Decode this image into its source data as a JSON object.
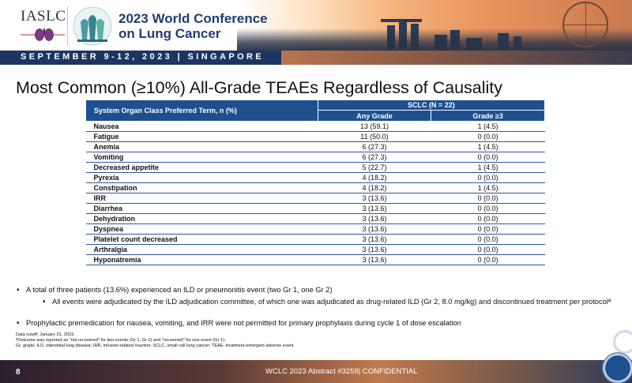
{
  "header": {
    "logo_text": "IASLC",
    "conference_title_line1": "2023 World Conference",
    "conference_title_line2": "on Lung Cancer",
    "date_bar": "SEPTEMBER 9-12, 2023 | SINGAPORE"
  },
  "slide": {
    "title": "Most Common (≥10%) All-Grade TEAEs Regardless of Causality"
  },
  "table": {
    "header_term": "System Organ Class Preferred Term, n (%)",
    "header_group": "SCLC (N = 22)",
    "header_any": "Any Grade",
    "header_grade3": "Grade ≥3",
    "rows": [
      {
        "term": "Nausea",
        "any": "13 (59.1)",
        "g3": "1 (4.5)"
      },
      {
        "term": "Fatigue",
        "any": "11 (50.0)",
        "g3": "0 (0.0)"
      },
      {
        "term": "Anemia",
        "any": "6 (27.3)",
        "g3": "1 (4.5)"
      },
      {
        "term": "Vomiting",
        "any": "6 (27.3)",
        "g3": "0 (0.0)"
      },
      {
        "term": "Decreased appetite",
        "any": "5 (22.7)",
        "g3": "1 (4.5)"
      },
      {
        "term": "Pyrexia",
        "any": "4 (18.2)",
        "g3": "0 (0.0)"
      },
      {
        "term": "Constipation",
        "any": "4 (18.2)",
        "g3": "1 (4.5)"
      },
      {
        "term": "IRR",
        "any": "3 (13.6)",
        "g3": "0 (0.0)"
      },
      {
        "term": "Diarrhea",
        "any": "3 (13.6)",
        "g3": "0 (0.0)"
      },
      {
        "term": "Dehydration",
        "any": "3 (13.6)",
        "g3": "0 (0.0)"
      },
      {
        "term": "Dyspnea",
        "any": "3 (13.6)",
        "g3": "0 (0.0)"
      },
      {
        "term": "Platelet count decreased",
        "any": "3 (13.6)",
        "g3": "0 (0.0)"
      },
      {
        "term": "Arthralgia",
        "any": "3 (13.6)",
        "g3": "0 (0.0)"
      },
      {
        "term": "Hyponatremia",
        "any": "3 (13.6)",
        "g3": "0 (0.0)"
      }
    ]
  },
  "bullets": {
    "b1": "A total of three patients (13.6%) experienced an ILD or pneumonitis event (two Gr 1, one Gr 2)",
    "b1a": "All events were adjudicated by the ILD adjudication committee, of which one was adjudicated as drug-related ILD (Gr 2, 8.0 mg/kg) and discontinued treatment per protocolª",
    "b2": "Prophylactic premedication for nausea, vomiting, and IRR were not permitted for primary prophylaxis during cycle 1 of dose escalation"
  },
  "footnotes": {
    "fn1": "Data cutoff: January 31, 2023.",
    "fn2": "ªOutcome was reported as \"not recovered\" for two events (Gr 1, Gr 2) and \"recovered\" for one event (Gr 1).",
    "fn3": "Gr, grade; ILD, interstitial lung disease; IRR, infusion-related reaction; SCLC, small cell lung cancer; TEAE, treatment-emergent adverse event."
  },
  "footer": {
    "page_number": "8",
    "text": "WCLC 2023 Abstract #3258| CONFIDENTIAL"
  },
  "colors": {
    "table_header": "#1e4f8f",
    "date_bar": "#1c3563",
    "title_blue": "#1f3e70"
  }
}
